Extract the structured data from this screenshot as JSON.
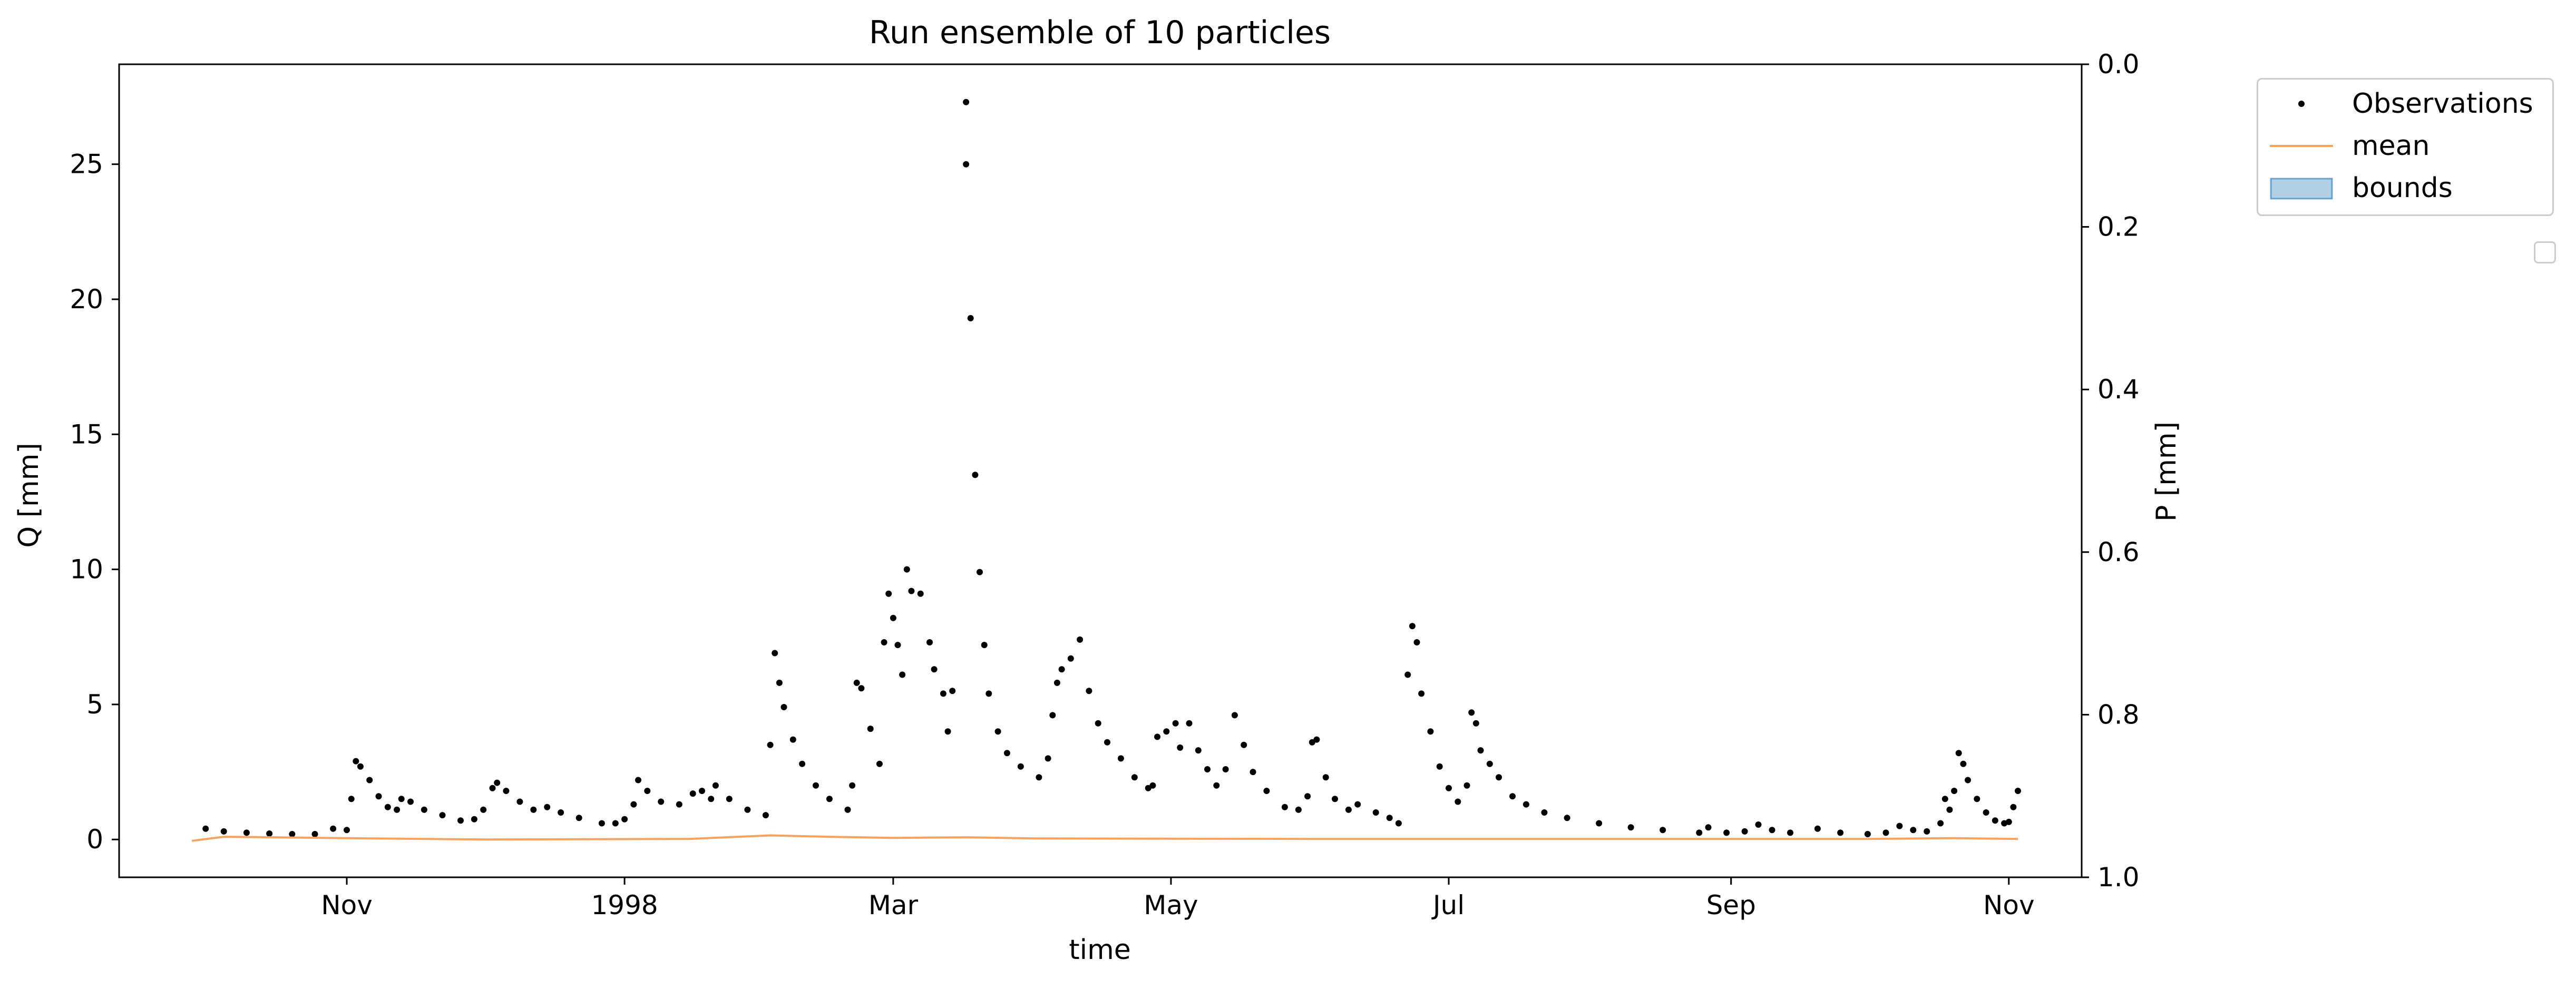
{
  "chart_data": {
    "type": "line",
    "title": "Run ensemble of 10 particles",
    "xlabel": "time",
    "ylabel": "Q [mm]",
    "y2label": "P [mm]",
    "xlim": [
      "1997-09-12",
      "1998-11-17"
    ],
    "ylim": [
      -1.4,
      28.7
    ],
    "y2lim": [
      1.0,
      0.0
    ],
    "y2_inverted": true,
    "xticks": [
      {
        "date": "1997-11-01",
        "label": "Nov"
      },
      {
        "date": "1998-01-01",
        "label": "1998"
      },
      {
        "date": "1998-03-01",
        "label": "Mar"
      },
      {
        "date": "1998-05-01",
        "label": "May"
      },
      {
        "date": "1998-07-01",
        "label": "Jul"
      },
      {
        "date": "1998-09-01",
        "label": "Sep"
      },
      {
        "date": "1998-11-01",
        "label": "Nov"
      }
    ],
    "yticks": [
      0,
      5,
      10,
      15,
      20,
      25
    ],
    "y2ticks": [
      {
        "value": 0.0,
        "label": "0.0"
      },
      {
        "value": 0.2,
        "label": "0.2"
      },
      {
        "value": 0.4,
        "label": "0.4"
      },
      {
        "value": 0.6,
        "label": "0.6"
      },
      {
        "value": 0.8,
        "label": "0.8"
      },
      {
        "value": 1.0,
        "label": "1.0"
      }
    ],
    "grid": false,
    "legend_position": "outside upper right",
    "series": [
      {
        "name": "Observations",
        "kind": "points",
        "color": "#000000",
        "points": [
          [
            "1997-10-01",
            0.4
          ],
          [
            "1997-10-05",
            0.3
          ],
          [
            "1997-10-10",
            0.25
          ],
          [
            "1997-10-15",
            0.22
          ],
          [
            "1997-10-20",
            0.2
          ],
          [
            "1997-10-25",
            0.2
          ],
          [
            "1997-10-29",
            0.4
          ],
          [
            "1997-11-01",
            0.35
          ],
          [
            "1997-11-02",
            1.5
          ],
          [
            "1997-11-03",
            2.9
          ],
          [
            "1997-11-04",
            2.7
          ],
          [
            "1997-11-06",
            2.2
          ],
          [
            "1997-11-08",
            1.6
          ],
          [
            "1997-11-10",
            1.2
          ],
          [
            "1997-11-12",
            1.1
          ],
          [
            "1997-11-13",
            1.5
          ],
          [
            "1997-11-15",
            1.4
          ],
          [
            "1997-11-18",
            1.1
          ],
          [
            "1997-11-22",
            0.9
          ],
          [
            "1997-11-26",
            0.7
          ],
          [
            "1997-11-29",
            0.75
          ],
          [
            "1997-12-01",
            1.1
          ],
          [
            "1997-12-03",
            1.9
          ],
          [
            "1997-12-04",
            2.1
          ],
          [
            "1997-12-06",
            1.8
          ],
          [
            "1997-12-09",
            1.4
          ],
          [
            "1997-12-12",
            1.1
          ],
          [
            "1997-12-15",
            1.2
          ],
          [
            "1997-12-18",
            1.0
          ],
          [
            "1997-12-22",
            0.8
          ],
          [
            "1997-12-27",
            0.6
          ],
          [
            "1997-12-30",
            0.6
          ],
          [
            "1998-01-01",
            0.75
          ],
          [
            "1998-01-03",
            1.3
          ],
          [
            "1998-01-04",
            2.2
          ],
          [
            "1998-01-06",
            1.8
          ],
          [
            "1998-01-09",
            1.4
          ],
          [
            "1998-01-13",
            1.3
          ],
          [
            "1998-01-16",
            1.7
          ],
          [
            "1998-01-18",
            1.8
          ],
          [
            "1998-01-20",
            1.5
          ],
          [
            "1998-01-21",
            2.0
          ],
          [
            "1998-01-24",
            1.5
          ],
          [
            "1998-01-28",
            1.1
          ],
          [
            "1998-02-01",
            0.9
          ],
          [
            "1998-02-02",
            3.5
          ],
          [
            "1998-02-03",
            6.9
          ],
          [
            "1998-02-04",
            5.8
          ],
          [
            "1998-02-05",
            4.9
          ],
          [
            "1998-02-07",
            3.7
          ],
          [
            "1998-02-09",
            2.8
          ],
          [
            "1998-02-12",
            2.0
          ],
          [
            "1998-02-15",
            1.5
          ],
          [
            "1998-02-19",
            1.1
          ],
          [
            "1998-02-20",
            2.0
          ],
          [
            "1998-02-21",
            5.8
          ],
          [
            "1998-02-22",
            5.6
          ],
          [
            "1998-02-24",
            4.1
          ],
          [
            "1998-02-26",
            2.8
          ],
          [
            "1998-02-27",
            7.3
          ],
          [
            "1998-02-28",
            9.1
          ],
          [
            "1998-03-01",
            8.2
          ],
          [
            "1998-03-02",
            7.2
          ],
          [
            "1998-03-03",
            6.1
          ],
          [
            "1998-03-04",
            10.0
          ],
          [
            "1998-03-05",
            9.2
          ],
          [
            "1998-03-07",
            9.1
          ],
          [
            "1998-03-09",
            7.3
          ],
          [
            "1998-03-10",
            6.3
          ],
          [
            "1998-03-12",
            5.4
          ],
          [
            "1998-03-13",
            4.0
          ],
          [
            "1998-03-14",
            5.5
          ],
          [
            "1998-03-17",
            25.0
          ],
          [
            "1998-03-17",
            27.3
          ],
          [
            "1998-03-18",
            19.3
          ],
          [
            "1998-03-19",
            13.5
          ],
          [
            "1998-03-20",
            9.9
          ],
          [
            "1998-03-21",
            7.2
          ],
          [
            "1998-03-22",
            5.4
          ],
          [
            "1998-03-24",
            4.0
          ],
          [
            "1998-03-26",
            3.2
          ],
          [
            "1998-03-29",
            2.7
          ],
          [
            "1998-04-02",
            2.3
          ],
          [
            "1998-04-04",
            3.0
          ],
          [
            "1998-04-05",
            4.6
          ],
          [
            "1998-04-06",
            5.8
          ],
          [
            "1998-04-07",
            6.3
          ],
          [
            "1998-04-09",
            6.7
          ],
          [
            "1998-04-11",
            7.4
          ],
          [
            "1998-04-13",
            5.5
          ],
          [
            "1998-04-15",
            4.3
          ],
          [
            "1998-04-17",
            3.6
          ],
          [
            "1998-04-20",
            3.0
          ],
          [
            "1998-04-23",
            2.3
          ],
          [
            "1998-04-26",
            1.9
          ],
          [
            "1998-04-27",
            2.0
          ],
          [
            "1998-04-28",
            3.8
          ],
          [
            "1998-04-30",
            4.0
          ],
          [
            "1998-05-02",
            4.3
          ],
          [
            "1998-05-03",
            3.4
          ],
          [
            "1998-05-05",
            4.3
          ],
          [
            "1998-05-07",
            3.3
          ],
          [
            "1998-05-09",
            2.6
          ],
          [
            "1998-05-11",
            2.0
          ],
          [
            "1998-05-13",
            2.6
          ],
          [
            "1998-05-15",
            4.6
          ],
          [
            "1998-05-17",
            3.5
          ],
          [
            "1998-05-19",
            2.5
          ],
          [
            "1998-05-22",
            1.8
          ],
          [
            "1998-05-26",
            1.2
          ],
          [
            "1998-05-29",
            1.1
          ],
          [
            "1998-05-31",
            1.6
          ],
          [
            "1998-06-01",
            3.6
          ],
          [
            "1998-06-02",
            3.7
          ],
          [
            "1998-06-04",
            2.3
          ],
          [
            "1998-06-06",
            1.5
          ],
          [
            "1998-06-09",
            1.1
          ],
          [
            "1998-06-11",
            1.3
          ],
          [
            "1998-06-15",
            1.0
          ],
          [
            "1998-06-18",
            0.8
          ],
          [
            "1998-06-20",
            0.6
          ],
          [
            "1998-06-22",
            6.1
          ],
          [
            "1998-06-23",
            7.9
          ],
          [
            "1998-06-24",
            7.3
          ],
          [
            "1998-06-25",
            5.4
          ],
          [
            "1998-06-27",
            4.0
          ],
          [
            "1998-06-29",
            2.7
          ],
          [
            "1998-07-01",
            1.9
          ],
          [
            "1998-07-03",
            1.4
          ],
          [
            "1998-07-05",
            2.0
          ],
          [
            "1998-07-06",
            4.7
          ],
          [
            "1998-07-07",
            4.3
          ],
          [
            "1998-07-08",
            3.3
          ],
          [
            "1998-07-10",
            2.8
          ],
          [
            "1998-07-12",
            2.3
          ],
          [
            "1998-07-15",
            1.6
          ],
          [
            "1998-07-18",
            1.3
          ],
          [
            "1998-07-22",
            1.0
          ],
          [
            "1998-07-27",
            0.8
          ],
          [
            "1998-08-03",
            0.6
          ],
          [
            "1998-08-10",
            0.45
          ],
          [
            "1998-08-17",
            0.35
          ],
          [
            "1998-08-25",
            0.25
          ],
          [
            "1998-08-27",
            0.45
          ],
          [
            "1998-08-31",
            0.25
          ],
          [
            "1998-09-04",
            0.3
          ],
          [
            "1998-09-07",
            0.55
          ],
          [
            "1998-09-10",
            0.35
          ],
          [
            "1998-09-14",
            0.25
          ],
          [
            "1998-09-20",
            0.4
          ],
          [
            "1998-09-25",
            0.25
          ],
          [
            "1998-10-01",
            0.2
          ],
          [
            "1998-10-05",
            0.25
          ],
          [
            "1998-10-08",
            0.5
          ],
          [
            "1998-10-11",
            0.35
          ],
          [
            "1998-10-14",
            0.3
          ],
          [
            "1998-10-17",
            0.6
          ],
          [
            "1998-10-18",
            1.5
          ],
          [
            "1998-10-19",
            1.1
          ],
          [
            "1998-10-20",
            1.8
          ],
          [
            "1998-10-21",
            3.2
          ],
          [
            "1998-10-22",
            2.8
          ],
          [
            "1998-10-23",
            2.2
          ],
          [
            "1998-10-25",
            1.5
          ],
          [
            "1998-10-27",
            1.0
          ],
          [
            "1998-10-29",
            0.7
          ],
          [
            "1998-10-31",
            0.6
          ],
          [
            "1998-11-01",
            0.65
          ],
          [
            "1998-11-02",
            1.2
          ],
          [
            "1998-11-03",
            1.8
          ]
        ]
      },
      {
        "name": "mean",
        "kind": "line",
        "color": "#f4a460",
        "points": [
          [
            "1997-09-28",
            -0.05
          ],
          [
            "1997-10-05",
            0.1
          ],
          [
            "1997-11-01",
            0.05
          ],
          [
            "1997-12-01",
            0.0
          ],
          [
            "1998-01-15",
            0.02
          ],
          [
            "1998-02-02",
            0.15
          ],
          [
            "1998-02-15",
            0.1
          ],
          [
            "1998-03-01",
            0.06
          ],
          [
            "1998-03-17",
            0.08
          ],
          [
            "1998-04-01",
            0.04
          ],
          [
            "1998-05-01",
            0.03
          ],
          [
            "1998-06-01",
            0.02
          ],
          [
            "1998-07-01",
            0.02
          ],
          [
            "1998-08-01",
            0.02
          ],
          [
            "1998-09-01",
            0.02
          ],
          [
            "1998-10-01",
            0.02
          ],
          [
            "1998-10-20",
            0.05
          ],
          [
            "1998-11-03",
            0.02
          ]
        ]
      },
      {
        "name": "bounds",
        "kind": "band",
        "color": "#1f77b4",
        "points": []
      }
    ]
  },
  "legend": {
    "items": [
      {
        "label": "Observations",
        "marker": "point"
      },
      {
        "label": "mean",
        "marker": "line"
      },
      {
        "label": "bounds",
        "marker": "patch"
      }
    ]
  }
}
